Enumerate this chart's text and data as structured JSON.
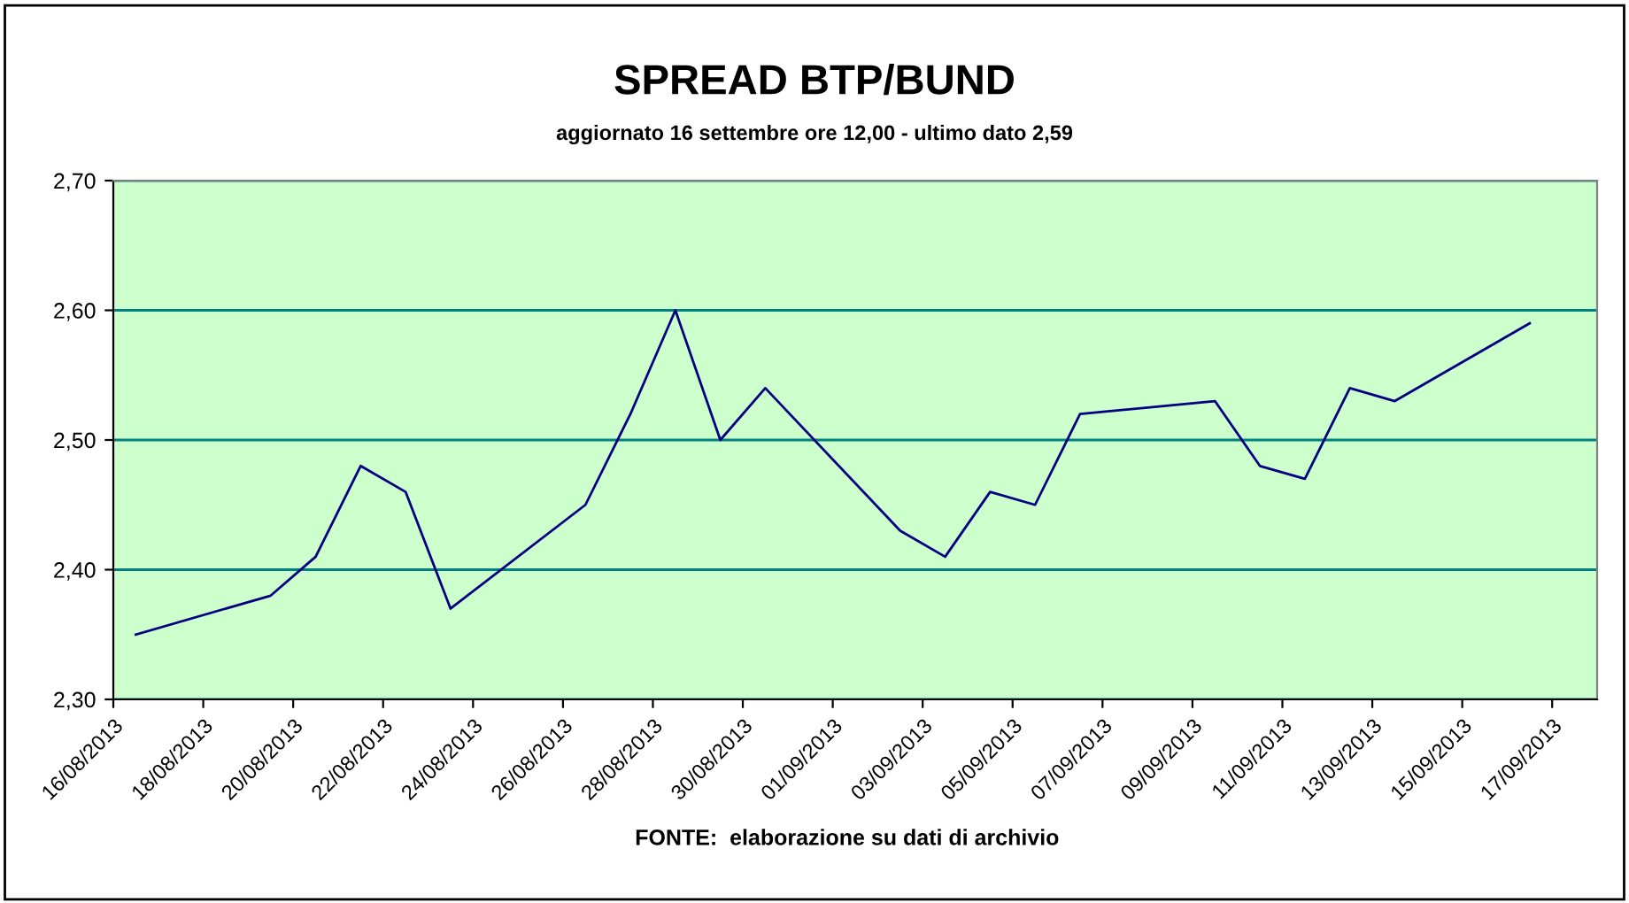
{
  "chart_data": {
    "type": "line",
    "title": "SPREAD BTP/BUND",
    "subtitle": "aggiornato 16 settembre ore 12,00 - ultimo dato 2,59",
    "annotations": [
      "FONTE:  elaborazione su dati di archivio"
    ],
    "x": [
      "2013-08-16T12:00",
      "2013-08-19T12:00",
      "2013-08-20T12:00",
      "2013-08-21T12:00",
      "2013-08-22T12:00",
      "2013-08-23T12:00",
      "2013-08-26T12:00",
      "2013-08-27T12:00",
      "2013-08-28T12:00",
      "2013-08-29T12:00",
      "2013-08-30T12:00",
      "2013-09-02T12:00",
      "2013-09-03T12:00",
      "2013-09-04T12:00",
      "2013-09-05T12:00",
      "2013-09-06T12:00",
      "2013-09-09T12:00",
      "2013-09-10T12:00",
      "2013-09-11T12:00",
      "2013-09-12T12:00",
      "2013-09-13T12:00",
      "2013-09-16T12:00"
    ],
    "series": [
      {
        "color": "#000080",
        "values": [
          2.35,
          2.38,
          2.41,
          2.48,
          2.46,
          2.37,
          2.45,
          2.52,
          2.6,
          2.5,
          2.54,
          2.43,
          2.41,
          2.46,
          2.45,
          2.52,
          2.53,
          2.48,
          2.47,
          2.54,
          2.53,
          2.59
        ]
      }
    ],
    "xlim": [
      "2013-08-16",
      "2013-09-18"
    ],
    "xticks": [
      {
        "value": "2013-08-16",
        "label": "16/08/2013"
      },
      {
        "value": "2013-08-18",
        "label": "18/08/2013"
      },
      {
        "value": "2013-08-20",
        "label": "20/08/2013"
      },
      {
        "value": "2013-08-22",
        "label": "22/08/2013"
      },
      {
        "value": "2013-08-24",
        "label": "24/08/2013"
      },
      {
        "value": "2013-08-26",
        "label": "26/08/2013"
      },
      {
        "value": "2013-08-28",
        "label": "28/08/2013"
      },
      {
        "value": "2013-08-30",
        "label": "30/08/2013"
      },
      {
        "value": "2013-09-01",
        "label": "01/09/2013"
      },
      {
        "value": "2013-09-03",
        "label": "03/09/2013"
      },
      {
        "value": "2013-09-05",
        "label": "05/09/2013"
      },
      {
        "value": "2013-09-07",
        "label": "07/09/2013"
      },
      {
        "value": "2013-09-09",
        "label": "09/09/2013"
      },
      {
        "value": "2013-09-11",
        "label": "11/09/2013"
      },
      {
        "value": "2013-09-13",
        "label": "13/09/2013"
      },
      {
        "value": "2013-09-15",
        "label": "15/09/2013"
      },
      {
        "value": "2013-09-17",
        "label": "17/09/2013"
      }
    ],
    "ylim": [
      2.3,
      2.7
    ],
    "yticks": [
      {
        "value": 2.3,
        "label": "2,30"
      },
      {
        "value": 2.4,
        "label": "2,40"
      },
      {
        "value": 2.5,
        "label": "2,50"
      },
      {
        "value": 2.6,
        "label": "2,60"
      },
      {
        "value": 2.7,
        "label": "2,70"
      }
    ],
    "grid": "y",
    "legend": false,
    "marker": "none",
    "line_style": "solid"
  }
}
